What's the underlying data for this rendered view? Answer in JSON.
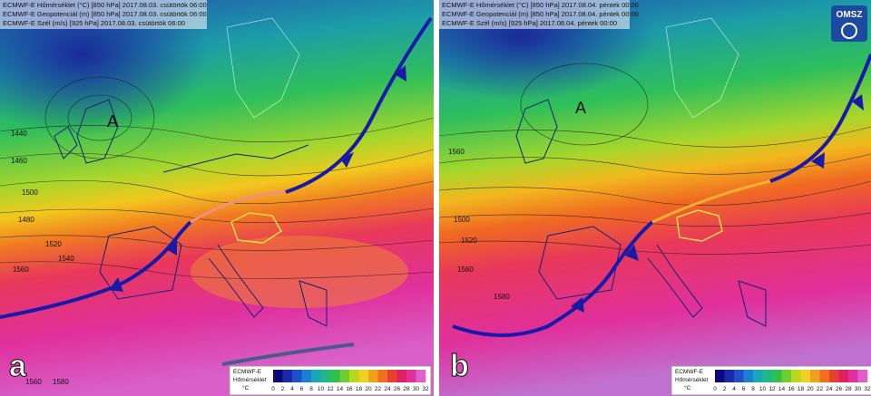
{
  "panels": [
    {
      "label": "a",
      "header": [
        "ECMWF-E Hőmérséklet (°C) [850 hPa] 2017.08.03. csütörtök 06:00",
        "ECMWF-E Geopotenciál (m) [850 hPa] 2017.08.03. csütörtök 06:00",
        "ECMWF-E Szél (m/s) [925 hPa] 2017.08.03. csütörtök 06:00"
      ],
      "high": "A",
      "contour_labels": [
        "1440",
        "1460",
        "1480",
        "1500",
        "1520",
        "1540",
        "1560",
        "1560",
        "1580"
      ],
      "legend": {
        "title": "ECMWF-E",
        "subtitle": "Hőmérséklet",
        "unit": "°C",
        "ticks": [
          0,
          2,
          4,
          6,
          8,
          10,
          12,
          14,
          16,
          18,
          20,
          22,
          24,
          26,
          28,
          30,
          32
        ]
      }
    },
    {
      "label": "b",
      "header": [
        "ECMWF-E Hőmérséklet (°C) [850 hPa] 2017.08.04. péntek 00:00",
        "ECMWF-E Geopotenciál (m) [850 hPa] 2017.08.04. péntek 00:00",
        "ECMWF-E Szél (m/s) [925 hPa] 2017.08.04. péntek 00:00"
      ],
      "high": "A",
      "logo": "OMSZ",
      "contour_labels": [
        "1560",
        "1500",
        "1520",
        "1560",
        "1580"
      ],
      "legend": {
        "title": "ECMWF-E",
        "subtitle": "Hőmérséklet",
        "unit": "°C",
        "ticks": [
          0,
          2,
          4,
          6,
          8,
          10,
          12,
          14,
          16,
          18,
          20,
          22,
          24,
          26,
          28,
          30,
          32
        ]
      }
    }
  ]
}
